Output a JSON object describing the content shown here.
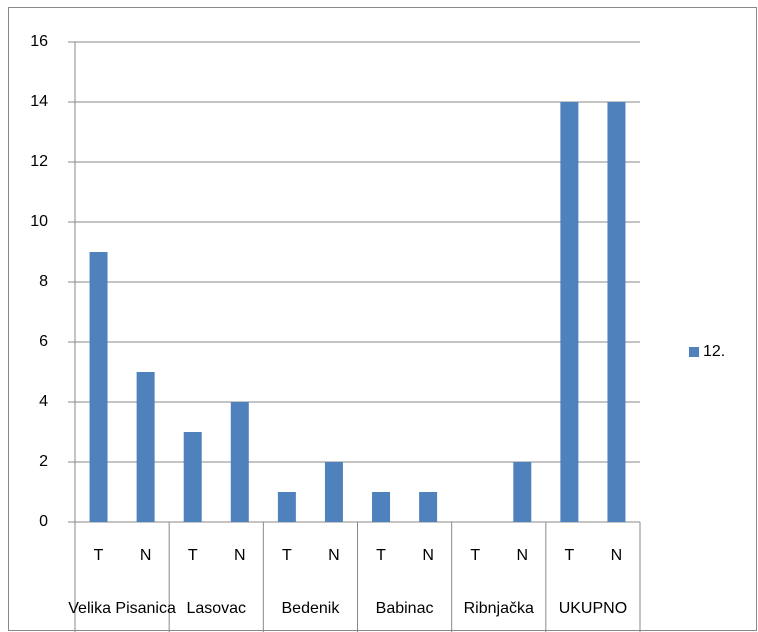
{
  "chart_data": {
    "type": "bar",
    "categories": [
      "T",
      "N",
      "T",
      "N",
      "T",
      "N",
      "T",
      "N",
      "T",
      "N",
      "T",
      "N"
    ],
    "groups": [
      "Velika Pisanica",
      "Lasovac",
      "Bedenik",
      "Babinac",
      "Ribnjačka",
      "UKUPNO"
    ],
    "series": [
      {
        "name": "12.",
        "color": "#4f81bd",
        "values": [
          9,
          5,
          3,
          4,
          1,
          2,
          1,
          1,
          0,
          2,
          14,
          14
        ]
      }
    ],
    "ylim": [
      0,
      16
    ],
    "yticks": [
      0,
      2,
      4,
      6,
      8,
      10,
      12,
      14,
      16
    ],
    "grid": true,
    "legend": "right"
  }
}
